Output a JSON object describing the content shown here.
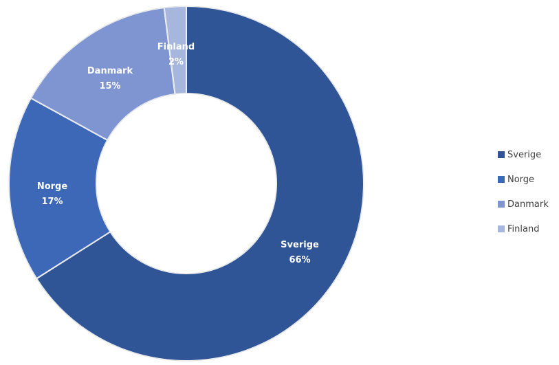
{
  "chart_data": {
    "type": "pie",
    "variant": "donut",
    "slices": [
      {
        "label": "Sverige",
        "value": 66,
        "value_label": "66%",
        "color": "#2f5597"
      },
      {
        "label": "Norge",
        "value": 17,
        "value_label": "17%",
        "color": "#3d68b8"
      },
      {
        "label": "Danmark",
        "value": 15,
        "value_label": "15%",
        "color": "#7e95d2"
      },
      {
        "label": "Finland",
        "value": 2,
        "value_label": "2%",
        "color": "#a7b6dd"
      }
    ],
    "legend": {
      "position": "right",
      "entries": [
        "Sverige",
        "Norge",
        "Danmark",
        "Finland"
      ]
    },
    "data_labels": "category and percentage"
  }
}
